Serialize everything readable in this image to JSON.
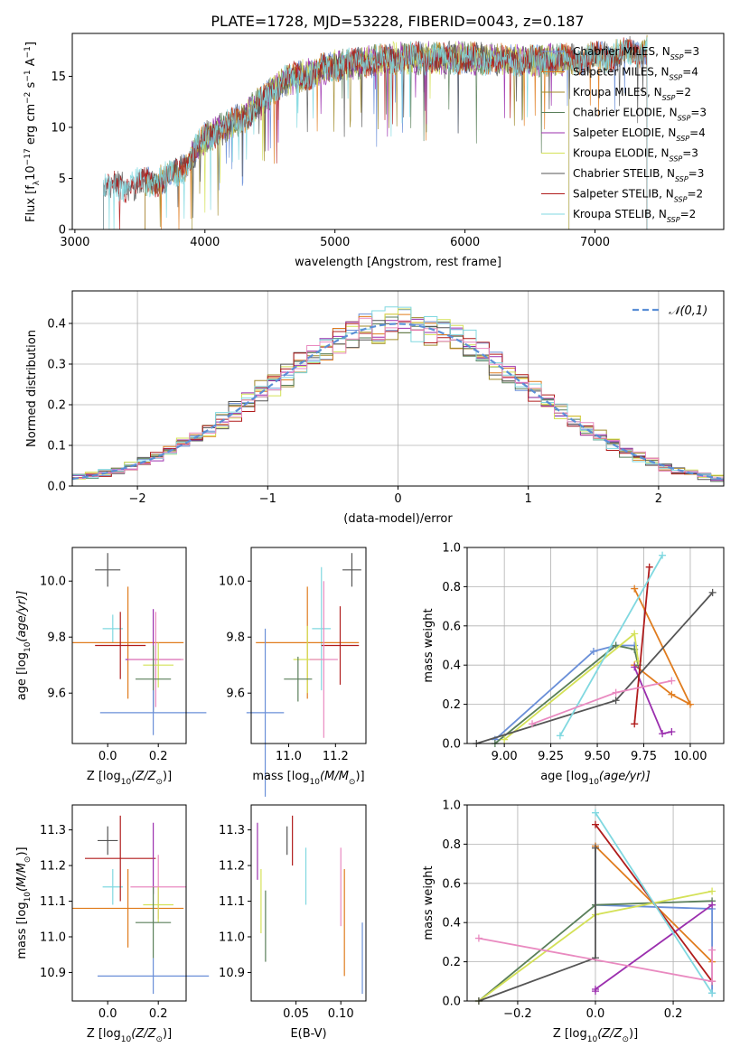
{
  "colors": {
    "chabrier_miles": "#6a8fd8",
    "salpeter_miles": "#e07c1e",
    "kroupa_miles": "#a08a2a",
    "chabrier_elodie": "#5a7f5a",
    "salpeter_elodie": "#9b2fae",
    "kroupa_elodie": "#d4e157",
    "chabrier_stelib": "#555555",
    "salpeter_stelib": "#b01c1c",
    "kroupa_stelib": "#80d8e0",
    "pink": "#e98ac0"
  },
  "chart_data": [
    {
      "id": "spectrum",
      "type": "line",
      "title": "PLATE=1728, MJD=53228, FIBERID=0043, z=0.187",
      "xlabel": "wavelength [Angstrom, rest frame]",
      "ylabel_parts": [
        "Flux [f",
        "λ",
        "10",
        "−17",
        " erg cm",
        "−2",
        " s",
        "−1",
        " A",
        "−1",
        "]"
      ],
      "xlim": [
        2980,
        7990
      ],
      "ylim": [
        0,
        19.2
      ],
      "xticks": [
        3000,
        4000,
        5000,
        6000,
        7000
      ],
      "yticks": [
        0,
        5,
        10,
        15
      ],
      "legend_position": "right",
      "series": [
        {
          "label": "Chabrier MILES, N",
          "sub": "SSP",
          "eq": "=3",
          "color_key": "chabrier_miles",
          "start": 3540,
          "end": 7400
        },
        {
          "label": "Salpeter MILES, N",
          "sub": "SSP",
          "eq": "=4",
          "color_key": "salpeter_miles",
          "start": 3540,
          "end": 7400
        },
        {
          "label": "Kroupa MILES, N",
          "sub": "SSP",
          "eq": "=2",
          "color_key": "kroupa_miles",
          "start": 3540,
          "end": 7400
        },
        {
          "label": "Chabrier ELODIE, N",
          "sub": "SSP",
          "eq": "=3",
          "color_key": "chabrier_elodie",
          "start": 3900,
          "end": 6800
        },
        {
          "label": "Salpeter ELODIE, N",
          "sub": "SSP",
          "eq": "=4",
          "color_key": "salpeter_elodie",
          "start": 3900,
          "end": 6800
        },
        {
          "label": "Kroupa ELODIE, N",
          "sub": "SSP",
          "eq": "=3",
          "color_key": "kroupa_elodie",
          "start": 3900,
          "end": 6800
        },
        {
          "label": "Chabrier STELIB, N",
          "sub": "SSP",
          "eq": "=3",
          "color_key": "chabrier_stelib",
          "start": 3220,
          "end": 7400
        },
        {
          "label": "Salpeter STELIB, N",
          "sub": "SSP",
          "eq": "=2",
          "color_key": "salpeter_stelib",
          "start": 3220,
          "end": 7400
        },
        {
          "label": "Kroupa STELIB, N",
          "sub": "SSP",
          "eq": "=2",
          "color_key": "kroupa_stelib",
          "start": 3220,
          "end": 7400
        }
      ],
      "continuum": {
        "x": [
          3220,
          3540,
          3800,
          4000,
          4300,
          4600,
          5000,
          5500,
          6000,
          6500,
          7000,
          7400
        ],
        "y": [
          4,
          4.5,
          5.5,
          9,
          11,
          14.5,
          16,
          16.8,
          16.8,
          16.5,
          16.8,
          17.5
        ]
      }
    },
    {
      "id": "residuals",
      "type": "histogram",
      "xlabel": "(data-model)/error",
      "ylabel": "Normed distribution",
      "xlim": [
        -2.5,
        2.5
      ],
      "ylim": [
        0,
        0.48
      ],
      "xticks": [
        -2,
        -1,
        0,
        1,
        2
      ],
      "yticks": [
        0.0,
        0.1,
        0.2,
        0.3,
        0.4
      ],
      "grid": true,
      "bin_width": 0.1,
      "legend": "𝒩(0,1)",
      "legend_position": "top-right"
    },
    {
      "id": "age_vs_Z",
      "type": "errorbar",
      "xlabel_parts": [
        "Z [log",
        "10",
        "(Z/Z",
        "⊙",
        ")]"
      ],
      "ylabel_parts": [
        "age  [log",
        "10",
        "(age/yr)]"
      ],
      "xlim": [
        -0.14,
        0.31
      ],
      "ylim": [
        9.42,
        10.12
      ],
      "xticks": [
        0.0,
        0.2
      ],
      "yticks": [
        9.6,
        9.8,
        10.0
      ],
      "points": [
        {
          "x": 0.0,
          "y": 10.04,
          "xe": 0.05,
          "ye": 0.06,
          "color_key": "chabrier_stelib"
        },
        {
          "x": 0.02,
          "y": 9.83,
          "xe": 0.04,
          "ye": 0.05,
          "color_key": "kroupa_stelib"
        },
        {
          "x": 0.08,
          "y": 9.78,
          "xe": 0.22,
          "ye": 0.2,
          "color_key": "salpeter_miles"
        },
        {
          "x": 0.05,
          "y": 9.77,
          "xe": 0.1,
          "ye": 0.12,
          "color_key": "salpeter_stelib"
        },
        {
          "x": 0.18,
          "y": 9.72,
          "xe": 0.11,
          "ye": 0.18,
          "color_key": "salpeter_elodie"
        },
        {
          "x": 0.19,
          "y": 9.72,
          "xe": 0.11,
          "ye": 0.17,
          "color_key": "pink"
        },
        {
          "x": 0.2,
          "y": 9.7,
          "xe": 0.06,
          "ye": 0.08,
          "color_key": "kroupa_elodie"
        },
        {
          "x": 0.18,
          "y": 9.65,
          "xe": 0.07,
          "ye": 0.12,
          "color_key": "chabrier_elodie"
        },
        {
          "x": 0.18,
          "y": 9.53,
          "xe": 0.21,
          "ye": 0.08,
          "color_key": "chabrier_miles"
        }
      ]
    },
    {
      "id": "age_vs_mass",
      "type": "errorbar",
      "xlabel_parts": [
        "mass [log",
        "10",
        "(M/M",
        "⊙",
        ")]"
      ],
      "ylabel_parts": [],
      "xlim": [
        10.84,
        11.33
      ],
      "ylim": [
        9.42,
        10.12
      ],
      "xticks": [
        11.0,
        11.2
      ],
      "yticks": [
        9.6,
        9.8,
        10.0
      ],
      "points": [
        {
          "x": 11.27,
          "y": 10.04,
          "xe": 0.04,
          "ye": 0.06,
          "color_key": "chabrier_stelib"
        },
        {
          "x": 11.14,
          "y": 9.83,
          "xe": 0.04,
          "ye": 0.22,
          "color_key": "kroupa_stelib"
        },
        {
          "x": 11.08,
          "y": 9.78,
          "xe": 0.22,
          "ye": 0.2,
          "color_key": "salpeter_miles"
        },
        {
          "x": 11.22,
          "y": 9.77,
          "xe": 0.08,
          "ye": 0.14,
          "color_key": "salpeter_stelib"
        },
        {
          "x": 11.08,
          "y": 9.72,
          "xe": 0.06,
          "ye": 0.12,
          "color_key": "kroupa_elodie"
        },
        {
          "x": 11.15,
          "y": 9.72,
          "xe": 0.06,
          "ye": 0.28,
          "color_key": "pink"
        },
        {
          "x": 11.04,
          "y": 9.65,
          "xe": 0.06,
          "ye": 0.08,
          "color_key": "chabrier_elodie"
        },
        {
          "x": 10.9,
          "y": 9.53,
          "xe": 0.08,
          "ye": 0.3,
          "color_key": "chabrier_miles"
        }
      ]
    },
    {
      "id": "mass_weight_vs_age",
      "type": "line",
      "xlabel_parts": [
        "age  [log",
        "10",
        "(age/yr)]"
      ],
      "ylabel": "mass weight",
      "xlim": [
        8.8,
        10.18
      ],
      "ylim": [
        0,
        1
      ],
      "xticks": [
        9.0,
        9.25,
        9.5,
        9.75,
        10.0
      ],
      "yticks": [
        0.0,
        0.2,
        0.4,
        0.6,
        0.8,
        1.0
      ],
      "grid": true,
      "series": [
        {
          "color_key": "chabrier_miles",
          "x": [
            8.95,
            9.48,
            9.6,
            9.7
          ],
          "y": [
            0.02,
            0.47,
            0.5,
            0.5
          ]
        },
        {
          "color_key": "salpeter_miles",
          "x": [
            9.7,
            10.0,
            9.9,
            9.7
          ],
          "y": [
            0.79,
            0.2,
            0.25,
            0.4
          ]
        },
        {
          "color_key": "chabrier_elodie",
          "x": [
            8.95,
            9.6,
            9.7,
            9.72
          ],
          "y": [
            0.0,
            0.5,
            0.48,
            0.4
          ]
        },
        {
          "color_key": "salpeter_elodie",
          "x": [
            9.7,
            9.85,
            9.9
          ],
          "y": [
            0.39,
            0.05,
            0.06
          ]
        },
        {
          "color_key": "kroupa_elodie",
          "x": [
            9.0,
            9.7,
            9.72
          ],
          "y": [
            0.02,
            0.56,
            0.42
          ]
        },
        {
          "color_key": "chabrier_stelib",
          "x": [
            8.85,
            9.6,
            10.12
          ],
          "y": [
            0.0,
            0.22,
            0.77
          ]
        },
        {
          "color_key": "salpeter_stelib",
          "x": [
            9.7,
            9.78
          ],
          "y": [
            0.1,
            0.9
          ]
        },
        {
          "color_key": "kroupa_stelib",
          "x": [
            9.3,
            9.85
          ],
          "y": [
            0.04,
            0.96
          ]
        },
        {
          "color_key": "pink",
          "x": [
            9.15,
            9.6,
            9.9
          ],
          "y": [
            0.1,
            0.26,
            0.32
          ]
        }
      ]
    },
    {
      "id": "mass_vs_Z",
      "type": "errorbar",
      "xlabel_parts": [
        "Z [log",
        "10",
        "(Z/Z",
        "⊙",
        ")]"
      ],
      "ylabel_parts": [
        "mass [log",
        "10",
        "(M/M",
        "⊙",
        ")]"
      ],
      "xlim": [
        -0.14,
        0.31
      ],
      "ylim": [
        10.82,
        11.37
      ],
      "xticks": [
        0.0,
        0.2
      ],
      "yticks": [
        10.9,
        11.0,
        11.1,
        11.2,
        11.3
      ],
      "points": [
        {
          "x": 0.0,
          "y": 11.27,
          "xe": 0.04,
          "ye": 0.04,
          "color_key": "chabrier_stelib"
        },
        {
          "x": 0.02,
          "y": 11.14,
          "xe": 0.04,
          "ye": 0.05,
          "color_key": "kroupa_stelib"
        },
        {
          "x": 0.05,
          "y": 11.22,
          "xe": 0.14,
          "ye": 0.12,
          "color_key": "salpeter_stelib"
        },
        {
          "x": 0.08,
          "y": 11.08,
          "xe": 0.22,
          "ye": 0.11,
          "color_key": "salpeter_miles"
        },
        {
          "x": 0.18,
          "y": 11.22,
          "xe": 0.0,
          "ye": 0.1,
          "color_key": "salpeter_elodie"
        },
        {
          "x": 0.2,
          "y": 11.14,
          "xe": 0.11,
          "ye": 0.09,
          "color_key": "pink"
        },
        {
          "x": 0.2,
          "y": 11.09,
          "xe": 0.06,
          "ye": 0.05,
          "color_key": "kroupa_elodie"
        },
        {
          "x": 0.18,
          "y": 11.04,
          "xe": 0.07,
          "ye": 0.1,
          "color_key": "chabrier_elodie"
        },
        {
          "x": 0.18,
          "y": 10.89,
          "xe": 0.22,
          "ye": 0.05,
          "color_key": "chabrier_miles"
        }
      ]
    },
    {
      "id": "mass_vs_ebv",
      "type": "errorbar",
      "xlabel": "E(B-V)",
      "xlim": [
        0.0,
        0.128
      ],
      "ylim": [
        10.82,
        11.37
      ],
      "xticks": [
        0.05,
        0.1
      ],
      "yticks": [
        10.9,
        11.0,
        11.1,
        11.2,
        11.3
      ],
      "points": [
        {
          "x": 0.007,
          "y": 11.24,
          "ye": 0.08,
          "color_key": "salpeter_elodie"
        },
        {
          "x": 0.011,
          "y": 11.1,
          "ye": 0.09,
          "color_key": "kroupa_elodie"
        },
        {
          "x": 0.016,
          "y": 11.03,
          "ye": 0.1,
          "color_key": "chabrier_elodie"
        },
        {
          "x": 0.04,
          "y": 11.27,
          "ye": 0.04,
          "color_key": "chabrier_stelib"
        },
        {
          "x": 0.046,
          "y": 11.27,
          "ye": 0.07,
          "color_key": "salpeter_stelib"
        },
        {
          "x": 0.061,
          "y": 11.17,
          "ye": 0.08,
          "color_key": "kroupa_stelib"
        },
        {
          "x": 0.1,
          "y": 11.14,
          "ye": 0.11,
          "color_key": "pink"
        },
        {
          "x": 0.104,
          "y": 11.04,
          "ye": 0.15,
          "color_key": "salpeter_miles"
        },
        {
          "x": 0.124,
          "y": 10.94,
          "ye": 0.1,
          "color_key": "chabrier_miles"
        }
      ]
    },
    {
      "id": "mass_weight_vs_Z",
      "type": "line",
      "xlabel_parts": [
        "Z [log",
        "10",
        "(Z/Z",
        "⊙",
        ")]"
      ],
      "ylabel": "mass weight",
      "xlim": [
        -0.33,
        0.33
      ],
      "ylim": [
        0,
        1
      ],
      "xticks": [
        -0.2,
        0.0,
        0.2
      ],
      "yticks": [
        0.0,
        0.2,
        0.4,
        0.6,
        0.8,
        1.0
      ],
      "grid": true,
      "series": [
        {
          "color_key": "chabrier_miles",
          "x": [
            0.0,
            0.0,
            0.3,
            0.3
          ],
          "y": [
            0.79,
            0.49,
            0.47,
            0.04
          ]
        },
        {
          "color_key": "salpeter_miles",
          "x": [
            0.0,
            0.3
          ],
          "y": [
            0.79,
            0.2
          ]
        },
        {
          "color_key": "chabrier_elodie",
          "x": [
            -0.3,
            0.0,
            0.3
          ],
          "y": [
            0.0,
            0.49,
            0.51
          ]
        },
        {
          "color_key": "salpeter_elodie",
          "x": [
            0.0,
            0.0,
            0.3
          ],
          "y": [
            0.05,
            0.06,
            0.49
          ]
        },
        {
          "color_key": "kroupa_elodie",
          "x": [
            -0.3,
            0.0,
            0.3
          ],
          "y": [
            0.0,
            0.44,
            0.56
          ]
        },
        {
          "color_key": "chabrier_stelib",
          "x": [
            -0.3,
            0.0,
            0.0
          ],
          "y": [
            0.0,
            0.22,
            0.78
          ]
        },
        {
          "color_key": "salpeter_stelib",
          "x": [
            0.0,
            0.3
          ],
          "y": [
            0.9,
            0.1
          ]
        },
        {
          "color_key": "kroupa_stelib",
          "x": [
            0.0,
            0.3
          ],
          "y": [
            0.96,
            0.04
          ]
        },
        {
          "color_key": "pink",
          "x": [
            -0.3,
            0.3,
            0.3
          ],
          "y": [
            0.32,
            0.1,
            0.26
          ]
        }
      ]
    }
  ]
}
